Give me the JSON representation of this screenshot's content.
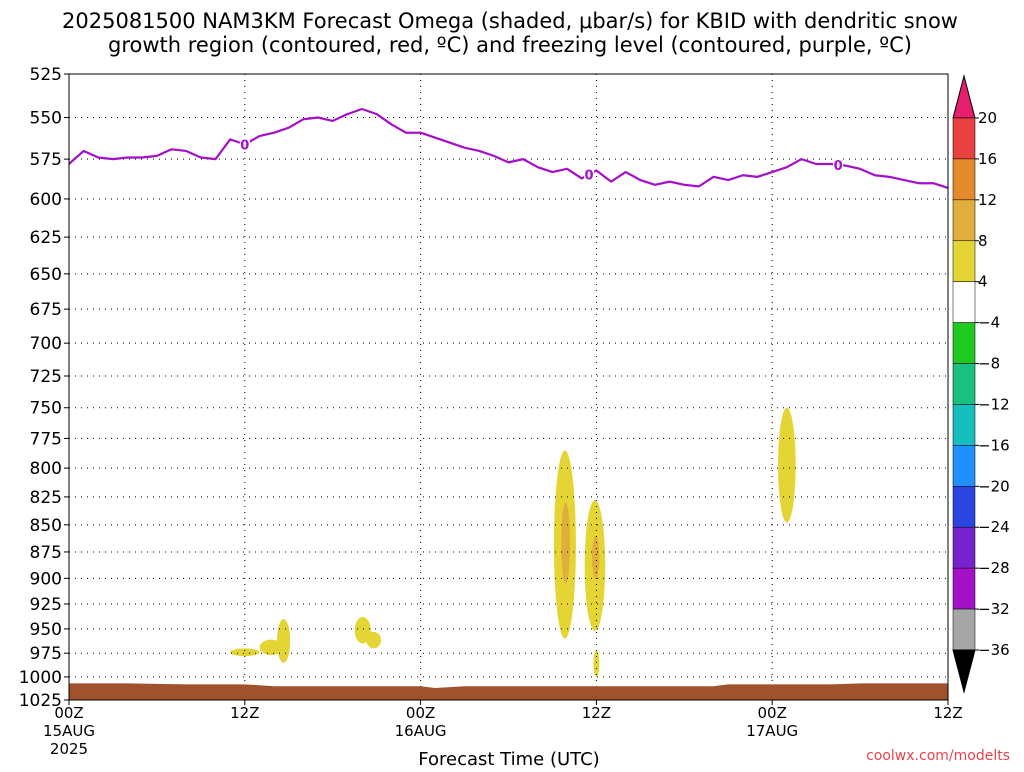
{
  "title_line1": "2025081500 NAM3KM Forecast Omega (shaded, μbar/s) for KBID with dendritic snow",
  "title_line2": "growth region (contoured, red, ºC) and freezing level (contoured, purple, ºC)",
  "credit": "coolwx.com/modelts",
  "chart_data": {
    "type": "heatmap",
    "title": "2025081500 NAM3KM Forecast Omega (shaded, μbar/s) for KBID with dendritic snow growth region (contoured, red, ºC) and freezing level (contoured, purple, ºC)",
    "xlabel": "Forecast Time (UTC)",
    "ylabel": "",
    "x_unit": "forecast hour",
    "xlim": [
      0,
      60
    ],
    "ylim": [
      1025,
      525
    ],
    "y_scale": "log-pressure",
    "grid": true,
    "x_ticks": [
      {
        "hour": 0,
        "label": "00Z",
        "sub1": "15AUG",
        "sub2": "2025"
      },
      {
        "hour": 12,
        "label": "12Z",
        "sub1": "",
        "sub2": ""
      },
      {
        "hour": 24,
        "label": "00Z",
        "sub1": "16AUG",
        "sub2": ""
      },
      {
        "hour": 36,
        "label": "12Z",
        "sub1": "",
        "sub2": ""
      },
      {
        "hour": 48,
        "label": "00Z",
        "sub1": "17AUG",
        "sub2": ""
      },
      {
        "hour": 60,
        "label": "12Z",
        "sub1": "",
        "sub2": ""
      }
    ],
    "y_ticks": [
      525,
      550,
      575,
      600,
      625,
      650,
      675,
      700,
      725,
      750,
      775,
      800,
      825,
      850,
      875,
      900,
      925,
      950,
      975,
      1000,
      1025
    ],
    "freezing_level": {
      "color": "#a40fc8",
      "contour_label": "0",
      "label_hours": [
        12,
        35.5,
        52.5
      ],
      "hours": [
        0,
        1,
        2,
        3,
        4,
        5,
        6,
        7,
        8,
        9,
        10,
        11,
        12,
        13,
        14,
        15,
        16,
        17,
        18,
        19,
        20,
        21,
        22,
        23,
        24,
        25,
        26,
        27,
        28,
        29,
        30,
        31,
        32,
        33,
        34,
        35,
        36,
        37,
        38,
        39,
        40,
        41,
        42,
        43,
        44,
        45,
        46,
        47,
        48,
        49,
        50,
        51,
        52,
        53,
        54,
        55,
        56,
        57,
        58,
        59,
        60
      ],
      "pressure": [
        578,
        570,
        574,
        575,
        574,
        574,
        573,
        569,
        570,
        574,
        575,
        563,
        566,
        561,
        559,
        556,
        551,
        550,
        552,
        548,
        545,
        548,
        554,
        559,
        559,
        562,
        565,
        568,
        570,
        573,
        577,
        575,
        580,
        583,
        581,
        587,
        582,
        589,
        583,
        588,
        591,
        589,
        591,
        592,
        586,
        588,
        585,
        586,
        583,
        580,
        575,
        578,
        578,
        579,
        581,
        585,
        586,
        588,
        590,
        590,
        593
      ]
    },
    "omega_areas": [
      {
        "hour_min": 11.0,
        "hour_max": 13.0,
        "p_min": 970,
        "p_max": 978,
        "value": 6
      },
      {
        "hour_min": 13.0,
        "hour_max": 14.6,
        "p_min": 961,
        "p_max": 977,
        "value": 6
      },
      {
        "hour_min": 14.2,
        "hour_max": 15.1,
        "p_min": 940,
        "p_max": 985,
        "value": 6
      },
      {
        "hour_min": 19.5,
        "hour_max": 20.6,
        "p_min": 938,
        "p_max": 965,
        "value": 6
      },
      {
        "hour_min": 20.3,
        "hour_max": 21.3,
        "p_min": 953,
        "p_max": 970,
        "value": 6
      },
      {
        "hour_min": 33.1,
        "hour_max": 34.6,
        "p_min": 785,
        "p_max": 960,
        "value": 6
      },
      {
        "hour_min": 33.6,
        "hour_max": 34.2,
        "p_min": 830,
        "p_max": 905,
        "value": 10
      },
      {
        "hour_min": 35.2,
        "hour_max": 36.6,
        "p_min": 828,
        "p_max": 952,
        "value": 6
      },
      {
        "hour_min": 35.7,
        "hour_max": 36.2,
        "p_min": 860,
        "p_max": 900,
        "value": 10
      },
      {
        "hour_min": 35.8,
        "hour_max": 36.2,
        "p_min": 972,
        "p_max": 1000,
        "value": 6
      },
      {
        "hour_min": 48.4,
        "hour_max": 49.6,
        "p_min": 750,
        "p_max": 848,
        "value": 6
      }
    ],
    "surface": {
      "color": "#a0522d",
      "hours": [
        0,
        4,
        8,
        12,
        14,
        24,
        25,
        27,
        42,
        43,
        44,
        45,
        46,
        52,
        54,
        60
      ],
      "pressure": [
        1007,
        1007,
        1008,
        1008,
        1010,
        1010,
        1012,
        1010,
        1010,
        1010,
        1010,
        1008,
        1008,
        1008,
        1007,
        1007
      ]
    },
    "colorbar": {
      "levels": [
        20,
        16,
        12,
        8,
        4,
        -4,
        -8,
        -12,
        -16,
        -20,
        -24,
        -28,
        -32,
        -36
      ],
      "colors": [
        "#e61e6e",
        "#e94040",
        "#e68a2e",
        "#e0ae3a",
        "#e5d534",
        "#ffffff",
        "#1fc91f",
        "#1bc080",
        "#15bfc0",
        "#1e90ff",
        "#2a45e0",
        "#7722cc",
        "#a40fc8",
        "#a6a6a6",
        "#000000"
      ]
    }
  }
}
